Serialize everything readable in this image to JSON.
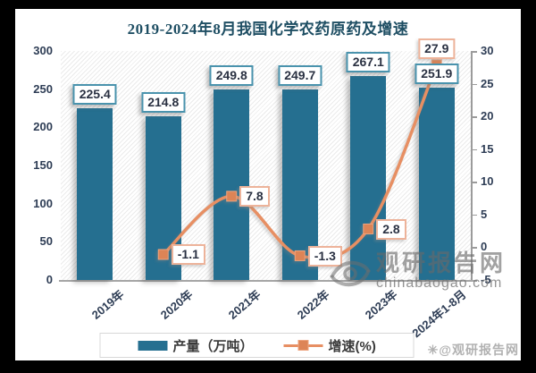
{
  "chart_data": {
    "type": "bar+line",
    "title": "2019-2024年8月我国化学农药原药及增速",
    "categories": [
      "2019年",
      "2020年",
      "2021年",
      "2022年",
      "2023年",
      "2024年1-8月"
    ],
    "series": [
      {
        "name": "产量（万吨）",
        "type": "bar",
        "axis": "left",
        "color": "#256f90",
        "values": [
          225.4,
          214.8,
          249.8,
          249.7,
          267.1,
          251.9
        ]
      },
      {
        "name": "增速(%)",
        "type": "line",
        "axis": "right",
        "color": "#e78f63",
        "marker_color": "#dd8456",
        "values": [
          null,
          -1.1,
          7.8,
          -1.3,
          2.8,
          27.9
        ]
      }
    ],
    "left_axis": {
      "min": 0,
      "max": 300,
      "step": 50,
      "ticks": [
        0,
        50,
        100,
        150,
        200,
        250,
        300
      ]
    },
    "right_axis": {
      "min": -5,
      "max": 30,
      "step": 5,
      "ticks": [
        -5,
        0,
        5,
        10,
        15,
        20,
        25,
        30
      ]
    },
    "legend_position": "bottom",
    "grid": false,
    "plot_background": "diagonal-hatch"
  },
  "watermark": {
    "brand": "观研报告网",
    "domain": "chinabaogao.com",
    "corner_icon": "✳",
    "corner_text": "@观研报告网"
  }
}
